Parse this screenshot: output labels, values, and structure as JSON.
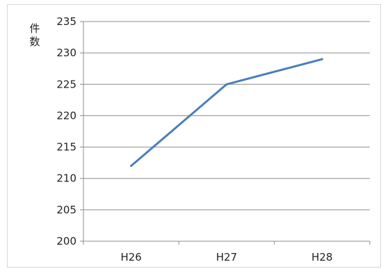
{
  "chart_data": {
    "type": "line",
    "categories": [
      "H26",
      "H27",
      "H28"
    ],
    "series": [
      {
        "values": [
          212,
          225,
          229
        ]
      }
    ],
    "ylabel": "件数",
    "ylim": [
      200,
      235
    ],
    "yticks": [
      200,
      205,
      210,
      215,
      220,
      225,
      230,
      235
    ],
    "grid": true,
    "legend": "none",
    "colors": {
      "line": "#4a7ebb",
      "grid": "#8c8c8c",
      "axis": "#8c8c8c"
    }
  }
}
